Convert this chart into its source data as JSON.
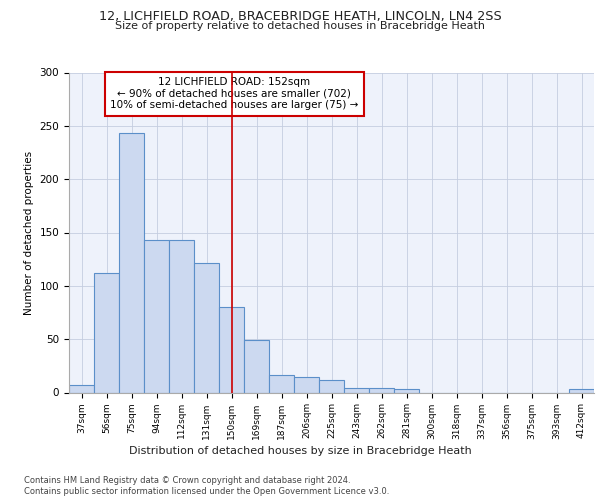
{
  "title": "12, LICHFIELD ROAD, BRACEBRIDGE HEATH, LINCOLN, LN4 2SS",
  "subtitle": "Size of property relative to detached houses in Bracebridge Heath",
  "xlabel_bottom": "Distribution of detached houses by size in Bracebridge Heath",
  "ylabel": "Number of detached properties",
  "categories": [
    "37sqm",
    "56sqm",
    "75sqm",
    "94sqm",
    "112sqm",
    "131sqm",
    "150sqm",
    "169sqm",
    "187sqm",
    "206sqm",
    "225sqm",
    "243sqm",
    "262sqm",
    "281sqm",
    "300sqm",
    "318sqm",
    "337sqm",
    "356sqm",
    "375sqm",
    "393sqm",
    "412sqm"
  ],
  "values": [
    7,
    112,
    243,
    143,
    143,
    121,
    80,
    49,
    16,
    15,
    12,
    4,
    4,
    3,
    0,
    0,
    0,
    0,
    0,
    0,
    3
  ],
  "bar_color": "#ccd9f0",
  "bar_edge_color": "#5b8fc9",
  "vline_x_index": 6,
  "vline_color": "#cc0000",
  "annotation_text": "12 LICHFIELD ROAD: 152sqm\n← 90% of detached houses are smaller (702)\n10% of semi-detached houses are larger (75) →",
  "annotation_box_color": "#ffffff",
  "annotation_box_edge_color": "#cc0000",
  "ylim": [
    0,
    300
  ],
  "yticks": [
    0,
    50,
    100,
    150,
    200,
    250,
    300
  ],
  "footer_line1": "Contains HM Land Registry data © Crown copyright and database right 2024.",
  "footer_line2": "Contains public sector information licensed under the Open Government Licence v3.0.",
  "bg_color": "#eef2fb",
  "grid_color": "#c5cde0"
}
